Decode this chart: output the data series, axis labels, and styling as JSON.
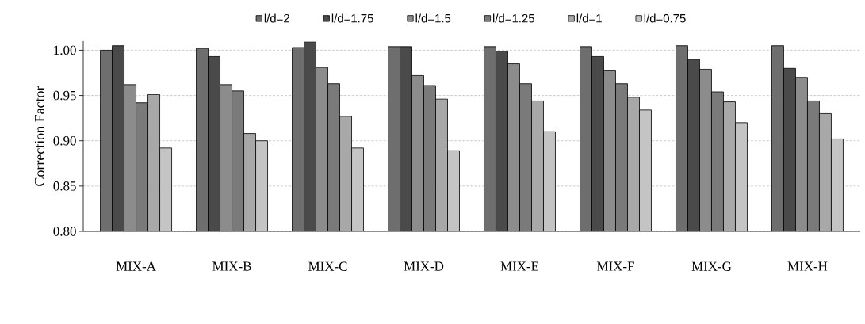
{
  "chart_data": {
    "type": "bar",
    "ylabel": "Correction Factor",
    "categories": [
      "MIX-A",
      "MIX-B",
      "MIX-C",
      "MIX-D",
      "MIX-E",
      "MIX-F",
      "MIX-G",
      "MIX-H"
    ],
    "series": [
      {
        "name": "l/d=2",
        "color": "#6e6e6e",
        "values": [
          1.0,
          1.002,
          1.003,
          1.004,
          1.004,
          1.004,
          1.005,
          1.005
        ]
      },
      {
        "name": "l/d=1.75",
        "color": "#4a4a4a",
        "values": [
          1.005,
          0.993,
          1.009,
          1.004,
          0.999,
          0.993,
          0.99,
          0.98
        ]
      },
      {
        "name": "l/d=1.5",
        "color": "#8c8c8c",
        "values": [
          0.962,
          0.962,
          0.981,
          0.972,
          0.985,
          0.978,
          0.979,
          0.97
        ]
      },
      {
        "name": "l/d=1.25",
        "color": "#7a7a7a",
        "values": [
          0.942,
          0.955,
          0.963,
          0.961,
          0.963,
          0.963,
          0.954,
          0.944
        ]
      },
      {
        "name": "l/d=1",
        "color": "#a8a8a8",
        "values": [
          0.951,
          0.908,
          0.927,
          0.946,
          0.944,
          0.948,
          0.943,
          0.93
        ]
      },
      {
        "name": "l/d=0.75",
        "color": "#c4c4c4",
        "values": [
          0.892,
          0.9,
          0.892,
          0.889,
          0.91,
          0.934,
          0.92,
          0.902
        ]
      }
    ],
    "ylim": [
      0.8,
      1.01
    ],
    "yticks": [
      {
        "value": 0.8,
        "label": "0.80"
      },
      0.85,
      {
        "value": 0.9,
        "label": "0.90"
      },
      0.95,
      {
        "value": 1.0,
        "label": "1.00"
      }
    ],
    "grid": "y",
    "legend": "top"
  }
}
